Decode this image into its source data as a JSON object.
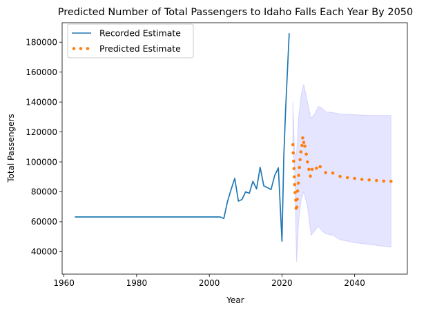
{
  "chart_data": {
    "type": "line",
    "title": "Predicted Number of Total Passengers to Idaho Falls Each Year By 2050",
    "xlabel": "Year",
    "ylabel": "Total Passengers",
    "xlim": [
      1959.5,
      2054.5
    ],
    "ylim": [
      25000,
      193000
    ],
    "x_ticks": [
      1960,
      1980,
      2000,
      2020,
      2040
    ],
    "y_ticks": [
      40000,
      60000,
      80000,
      100000,
      120000,
      140000,
      160000,
      180000
    ],
    "grid": false,
    "legend_position": "top-left",
    "band_color": "#0000ff",
    "series": [
      {
        "name": "Recorded Estimate",
        "style": "line",
        "color": "#1f77b4",
        "points": [
          [
            1963,
            63200
          ],
          [
            1970,
            63200
          ],
          [
            1980,
            63200
          ],
          [
            1990,
            63200
          ],
          [
            2000,
            63200
          ],
          [
            2003,
            63200
          ],
          [
            2004,
            62200
          ],
          [
            2005,
            73500
          ],
          [
            2006,
            81500
          ],
          [
            2007,
            89000
          ],
          [
            2008,
            73800
          ],
          [
            2009,
            74900
          ],
          [
            2010,
            80000
          ],
          [
            2011,
            79000
          ],
          [
            2012,
            87000
          ],
          [
            2013,
            82000
          ],
          [
            2014,
            96400
          ],
          [
            2015,
            84000
          ],
          [
            2016,
            82800
          ],
          [
            2017,
            81500
          ],
          [
            2018,
            91000
          ],
          [
            2019,
            96000
          ],
          [
            2020,
            47000
          ],
          [
            2020.5,
            104000
          ],
          [
            2021,
            135000
          ],
          [
            2022,
            186000
          ]
        ]
      },
      {
        "name": "Predicted Estimate",
        "style": "dotted",
        "color": "#ff7f0e",
        "points": [
          [
            2023,
            111500
          ],
          [
            2023.1,
            106000
          ],
          [
            2023.2,
            100500
          ],
          [
            2023.3,
            95500
          ],
          [
            2023.4,
            90000
          ],
          [
            2023.5,
            84800
          ],
          [
            2023.6,
            79500
          ],
          [
            2023.8,
            74500
          ],
          [
            2023.9,
            69000
          ],
          [
            2024.1,
            69800
          ],
          [
            2024.2,
            75000
          ],
          [
            2024.3,
            80500
          ],
          [
            2024.5,
            85800
          ],
          [
            2024.6,
            91000
          ],
          [
            2024.8,
            96300
          ],
          [
            2025,
            101500
          ],
          [
            2025.2,
            106700
          ],
          [
            2025.5,
            111000
          ],
          [
            2025.7,
            116000
          ],
          [
            2026,
            113000
          ],
          [
            2026.3,
            110500
          ],
          [
            2026.7,
            105200
          ],
          [
            2027,
            100000
          ],
          [
            2027.4,
            95000
          ],
          [
            2027.8,
            90500
          ],
          [
            2028.3,
            95000
          ],
          [
            2029.5,
            95800
          ],
          [
            2030.5,
            96800
          ],
          [
            2032,
            92800
          ],
          [
            2034,
            92500
          ],
          [
            2036,
            90300
          ],
          [
            2038,
            89500
          ],
          [
            2040,
            89000
          ],
          [
            2042,
            88300
          ],
          [
            2044,
            87900
          ],
          [
            2046,
            87600
          ],
          [
            2048,
            87200
          ],
          [
            2050,
            87000
          ]
        ]
      }
    ],
    "confidence_band": [
      [
        2023,
        113000,
        140000
      ],
      [
        2023.5,
        95000,
        105000
      ],
      [
        2024,
        33000,
        105000
      ],
      [
        2024.6,
        60000,
        130000
      ],
      [
        2025.3,
        75000,
        145000
      ],
      [
        2026,
        80000,
        152000
      ],
      [
        2027,
        70000,
        140000
      ],
      [
        2028,
        51000,
        129000
      ],
      [
        2029,
        54000,
        132000
      ],
      [
        2030,
        57000,
        137000
      ],
      [
        2031,
        54000,
        136000
      ],
      [
        2032,
        52000,
        133500
      ],
      [
        2034,
        51000,
        133000
      ],
      [
        2036,
        48000,
        132000
      ],
      [
        2040,
        46000,
        131500
      ],
      [
        2045,
        44500,
        131000
      ],
      [
        2050,
        43000,
        131000
      ]
    ]
  }
}
